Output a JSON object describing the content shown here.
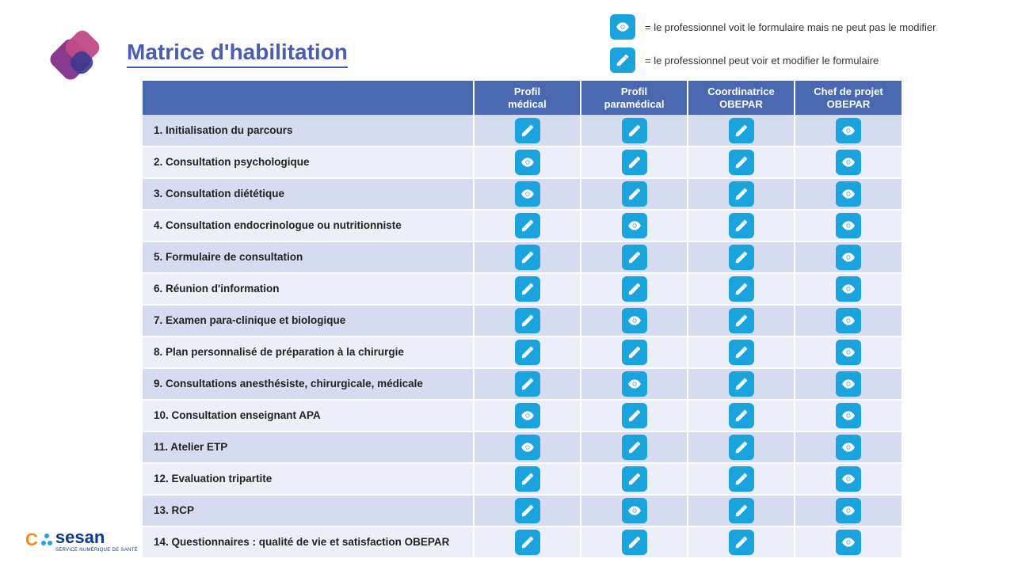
{
  "title": "Matrice d'habilitation",
  "legend": {
    "view": "= le professionnel voit le formulaire mais ne peut pas le modifier",
    "edit": "= le professionnel peut voir et modifier le formulaire"
  },
  "colors": {
    "accent": "#4a5db0",
    "header_bg": "#4a68b0",
    "row_odd": "#d6dcef",
    "row_even": "#eceff8",
    "icon_bg": "#1aa3dd",
    "icon_fg": "#ffffff",
    "text": "#222222",
    "legend_text": "#333333"
  },
  "columns": [
    "Profil\nmédical",
    "Profil\nparamédical",
    "Coordinatrice\nOBEPAR",
    "Chef de projet\nOBEPAR"
  ],
  "icon_types": {
    "edit": "edit",
    "view": "view"
  },
  "rows": [
    {
      "label": "1. Initialisation du parcours",
      "cells": [
        "edit",
        "edit",
        "edit",
        "view"
      ]
    },
    {
      "label": "2. Consultation psychologique",
      "cells": [
        "view",
        "edit",
        "edit",
        "view"
      ]
    },
    {
      "label": "3. Consultation diététique",
      "cells": [
        "view",
        "edit",
        "edit",
        "view"
      ]
    },
    {
      "label": "4. Consultation endocrinologue ou nutritionniste",
      "cells": [
        "edit",
        "view",
        "edit",
        "view"
      ]
    },
    {
      "label": "5. Formulaire de consultation",
      "cells": [
        "edit",
        "edit",
        "edit",
        "view"
      ]
    },
    {
      "label": "6. Réunion d'information",
      "cells": [
        "edit",
        "edit",
        "edit",
        "view"
      ]
    },
    {
      "label": "7. Examen para-clinique et biologique",
      "cells": [
        "edit",
        "view",
        "edit",
        "view"
      ]
    },
    {
      "label": "8. Plan personnalisé de préparation à la chirurgie",
      "cells": [
        "edit",
        "edit",
        "edit",
        "view"
      ]
    },
    {
      "label": "9. Consultations anesthésiste, chirurgicale, médicale",
      "cells": [
        "edit",
        "view",
        "edit",
        "view"
      ]
    },
    {
      "label": "10. Consultation enseignant APA",
      "cells": [
        "view",
        "edit",
        "edit",
        "view"
      ]
    },
    {
      "label": "11. Atelier ETP",
      "cells": [
        "view",
        "edit",
        "edit",
        "view"
      ]
    },
    {
      "label": "12. Evaluation tripartite",
      "cells": [
        "edit",
        "edit",
        "edit",
        "view"
      ]
    },
    {
      "label": "13. RCP",
      "cells": [
        "edit",
        "view",
        "edit",
        "view"
      ]
    },
    {
      "label": "14. Questionnaires : qualité de vie et satisfaction OBEPAR",
      "cells": [
        "edit",
        "edit",
        "edit",
        "view"
      ]
    }
  ],
  "logo_bottom": {
    "text": "sesan",
    "tagline": "SERVICE NUMÉRIQUE DE SANTÉ"
  }
}
